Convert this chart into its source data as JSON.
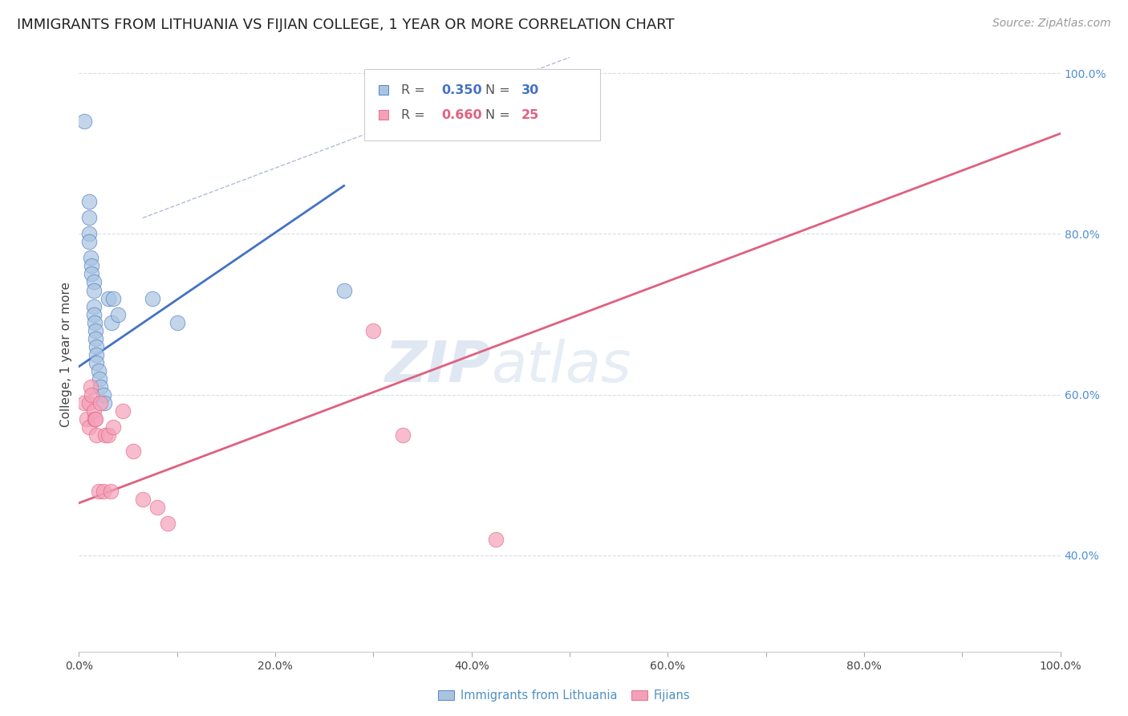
{
  "title": "IMMIGRANTS FROM LITHUANIA VS FIJIAN COLLEGE, 1 YEAR OR MORE CORRELATION CHART",
  "source": "Source: ZipAtlas.com",
  "ylabel": "College, 1 year or more",
  "xlim": [
    0.0,
    1.0
  ],
  "ylim": [
    0.28,
    1.02
  ],
  "xtick_labels": [
    "0.0%",
    "",
    "20.0%",
    "",
    "40.0%",
    "",
    "60.0%",
    "",
    "80.0%",
    "",
    "100.0%"
  ],
  "xtick_values": [
    0.0,
    0.1,
    0.2,
    0.3,
    0.4,
    0.5,
    0.6,
    0.7,
    0.8,
    0.9,
    1.0
  ],
  "ytick_labels_right": [
    "40.0%",
    "60.0%",
    "80.0%",
    "100.0%"
  ],
  "ytick_values_right": [
    0.4,
    0.6,
    0.8,
    1.0
  ],
  "legend_series": [
    {
      "label": "Immigrants from Lithuania",
      "color": "#a8c4e0",
      "R": 0.35,
      "N": 30
    },
    {
      "label": "Fijians",
      "color": "#f4a0b0",
      "R": 0.66,
      "N": 25
    }
  ],
  "blue_scatter_x": [
    0.005,
    0.01,
    0.01,
    0.01,
    0.01,
    0.012,
    0.013,
    0.013,
    0.015,
    0.015,
    0.015,
    0.015,
    0.016,
    0.017,
    0.017,
    0.018,
    0.018,
    0.018,
    0.02,
    0.021,
    0.022,
    0.025,
    0.026,
    0.03,
    0.033,
    0.035,
    0.04,
    0.075,
    0.1,
    0.27
  ],
  "blue_scatter_y": [
    0.94,
    0.84,
    0.82,
    0.8,
    0.79,
    0.77,
    0.76,
    0.75,
    0.74,
    0.73,
    0.71,
    0.7,
    0.69,
    0.68,
    0.67,
    0.66,
    0.65,
    0.64,
    0.63,
    0.62,
    0.61,
    0.6,
    0.59,
    0.72,
    0.69,
    0.72,
    0.7,
    0.72,
    0.69,
    0.73
  ],
  "pink_scatter_x": [
    0.005,
    0.008,
    0.01,
    0.01,
    0.012,
    0.013,
    0.015,
    0.016,
    0.017,
    0.018,
    0.02,
    0.022,
    0.025,
    0.027,
    0.03,
    0.032,
    0.035,
    0.045,
    0.055,
    0.065,
    0.08,
    0.09,
    0.3,
    0.33,
    0.425
  ],
  "pink_scatter_y": [
    0.59,
    0.57,
    0.59,
    0.56,
    0.61,
    0.6,
    0.58,
    0.57,
    0.57,
    0.55,
    0.48,
    0.59,
    0.48,
    0.55,
    0.55,
    0.48,
    0.56,
    0.58,
    0.53,
    0.47,
    0.46,
    0.44,
    0.68,
    0.55,
    0.42
  ],
  "blue_line_x": [
    0.0,
    0.27
  ],
  "blue_line_y": [
    0.635,
    0.86
  ],
  "pink_line_x": [
    0.0,
    1.0
  ],
  "pink_line_y": [
    0.465,
    0.925
  ],
  "ref_line_x": [
    0.065,
    0.5
  ],
  "ref_line_y": [
    0.82,
    1.02
  ],
  "blue_scatter_color": "#a8c4e0",
  "pink_scatter_color": "#f4a0b8",
  "blue_line_color": "#4472c4",
  "pink_line_color": "#e06080",
  "ref_line_color": "#b0bcd8",
  "watermark_text": "ZIPatlas",
  "background_color": "#ffffff",
  "grid_color": "#d8dde8",
  "title_fontsize": 13,
  "axis_label_fontsize": 11,
  "tick_fontsize": 10,
  "source_fontsize": 10,
  "leg_R_blue": "0.350",
  "leg_N_blue": "30",
  "leg_R_pink": "0.660",
  "leg_N_pink": "25",
  "leg_blue_text_color": "#4472c4",
  "leg_pink_text_color": "#e06080",
  "bottom_legend_color": "#5090c0"
}
